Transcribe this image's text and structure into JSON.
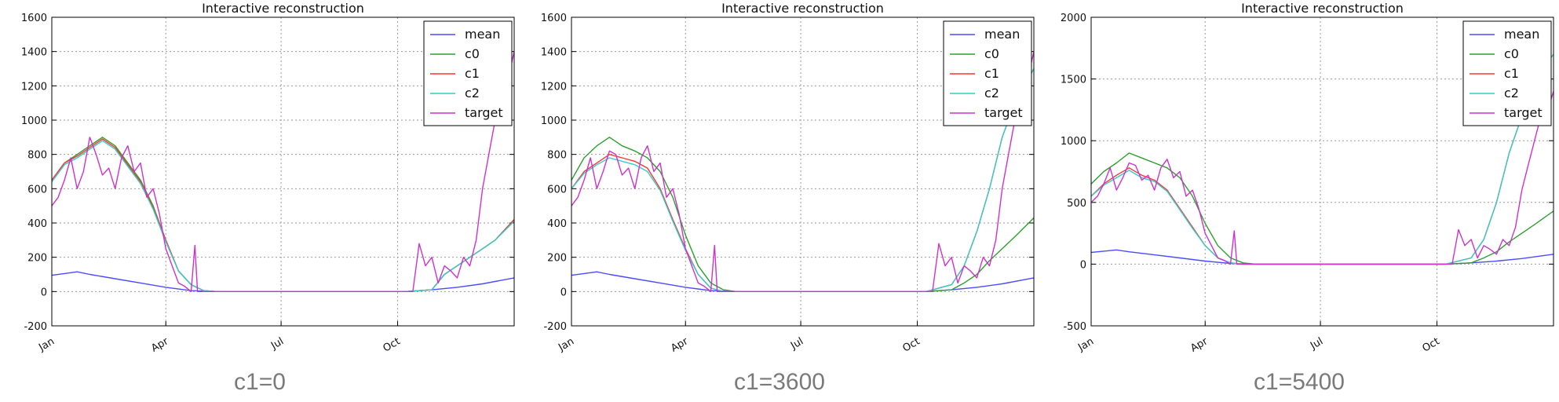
{
  "chart_data": [
    {
      "type": "line",
      "title": "Interactive reconstruction",
      "caption": "c1=0",
      "xlabel": "",
      "ylabel": "",
      "ylim": [
        -200,
        1600
      ],
      "yticks": [
        -200,
        0,
        200,
        400,
        600,
        800,
        1000,
        1200,
        1400,
        1600
      ],
      "xlim": [
        "Jan",
        "Dec end"
      ],
      "xticks": [
        {
          "label": "Jan",
          "day": 0
        },
        {
          "label": "Apr",
          "day": 90
        },
        {
          "label": "Jul",
          "day": 181
        },
        {
          "label": "Oct",
          "day": 273
        }
      ],
      "grid": true,
      "legend_position": "top-right",
      "series": [
        {
          "name": "mean",
          "color": "#4b4bff",
          "x": [
            0,
            10,
            20,
            30,
            50,
            70,
            90,
            110,
            130,
            200,
            280,
            300,
            320,
            340,
            365
          ],
          "y": [
            95,
            105,
            115,
            100,
            75,
            50,
            25,
            5,
            0,
            0,
            0,
            10,
            25,
            45,
            80
          ]
        },
        {
          "name": "c0",
          "color": "#2ca02c",
          "x": [
            0,
            10,
            20,
            30,
            40,
            50,
            60,
            70,
            80,
            90,
            100,
            110,
            120,
            130,
            280,
            300,
            310,
            320,
            330,
            340,
            350,
            365
          ],
          "y": [
            650,
            750,
            800,
            850,
            900,
            850,
            750,
            650,
            500,
            300,
            120,
            40,
            5,
            0,
            0,
            10,
            100,
            150,
            200,
            250,
            300,
            420
          ]
        },
        {
          "name": "c1",
          "color": "#ff3333",
          "x": [
            0,
            10,
            20,
            30,
            40,
            50,
            60,
            70,
            80,
            90,
            100,
            110,
            120,
            130,
            280,
            300,
            310,
            320,
            330,
            340,
            350,
            365
          ],
          "y": [
            650,
            750,
            790,
            840,
            890,
            840,
            740,
            640,
            490,
            300,
            120,
            40,
            5,
            0,
            0,
            10,
            100,
            150,
            200,
            250,
            300,
            420
          ]
        },
        {
          "name": "c2",
          "color": "#33cccc",
          "x": [
            0,
            10,
            20,
            30,
            40,
            50,
            60,
            70,
            80,
            90,
            100,
            110,
            120,
            130,
            280,
            300,
            310,
            320,
            330,
            340,
            350,
            365
          ],
          "y": [
            640,
            740,
            780,
            830,
            880,
            830,
            730,
            630,
            480,
            290,
            120,
            40,
            5,
            0,
            0,
            10,
            100,
            150,
            200,
            250,
            300,
            410
          ]
        },
        {
          "name": "target",
          "color": "#cc33cc",
          "x": [
            0,
            5,
            10,
            15,
            20,
            25,
            30,
            35,
            40,
            45,
            50,
            55,
            60,
            65,
            70,
            75,
            80,
            85,
            90,
            95,
            100,
            105,
            110,
            113,
            115,
            118,
            125,
            130,
            285,
            290,
            295,
            300,
            305,
            310,
            315,
            320,
            325,
            330,
            335,
            340,
            345,
            350,
            355,
            360,
            362,
            365
          ],
          "y": [
            500,
            550,
            650,
            780,
            600,
            700,
            900,
            800,
            680,
            720,
            600,
            780,
            850,
            700,
            750,
            550,
            600,
            450,
            250,
            150,
            50,
            30,
            0,
            270,
            0,
            0,
            0,
            0,
            0,
            280,
            150,
            200,
            50,
            150,
            120,
            80,
            200,
            150,
            300,
            600,
            800,
            1000,
            1200,
            1500,
            1300,
            1400
          ]
        }
      ]
    },
    {
      "type": "line",
      "title": "Interactive reconstruction",
      "caption": "c1=3600",
      "xlabel": "",
      "ylabel": "",
      "ylim": [
        -200,
        1600
      ],
      "yticks": [
        -200,
        0,
        200,
        400,
        600,
        800,
        1000,
        1200,
        1400,
        1600
      ],
      "xlim": [
        "Jan",
        "Dec end"
      ],
      "xticks": [
        {
          "label": "Jan",
          "day": 0
        },
        {
          "label": "Apr",
          "day": 90
        },
        {
          "label": "Jul",
          "day": 181
        },
        {
          "label": "Oct",
          "day": 273
        }
      ],
      "grid": true,
      "legend_position": "top-right",
      "series": [
        {
          "name": "mean",
          "color": "#4b4bff",
          "x": [
            0,
            10,
            20,
            30,
            50,
            70,
            90,
            110,
            130,
            200,
            280,
            300,
            320,
            340,
            365
          ],
          "y": [
            95,
            105,
            115,
            100,
            75,
            50,
            25,
            5,
            0,
            0,
            0,
            10,
            25,
            45,
            80
          ]
        },
        {
          "name": "c0",
          "color": "#2ca02c",
          "x": [
            0,
            10,
            20,
            30,
            40,
            50,
            60,
            70,
            80,
            90,
            100,
            110,
            120,
            130,
            280,
            300,
            310,
            320,
            330,
            340,
            350,
            365
          ],
          "y": [
            650,
            780,
            850,
            900,
            850,
            820,
            780,
            700,
            550,
            330,
            150,
            50,
            10,
            0,
            0,
            10,
            50,
            100,
            180,
            250,
            320,
            430
          ]
        },
        {
          "name": "c1",
          "color": "#ff3333",
          "x": [
            0,
            10,
            20,
            30,
            40,
            50,
            60,
            70,
            80,
            90,
            100,
            110,
            120,
            130,
            280,
            300,
            310,
            320,
            330,
            340,
            350,
            365
          ],
          "y": [
            600,
            700,
            750,
            800,
            780,
            760,
            720,
            600,
            420,
            250,
            100,
            20,
            0,
            0,
            0,
            40,
            150,
            350,
            600,
            900,
            1100,
            1300
          ]
        },
        {
          "name": "c2",
          "color": "#33cccc",
          "x": [
            0,
            10,
            20,
            30,
            40,
            50,
            60,
            70,
            80,
            90,
            100,
            110,
            120,
            130,
            280,
            300,
            310,
            320,
            330,
            340,
            350,
            365
          ],
          "y": [
            600,
            690,
            740,
            780,
            760,
            740,
            700,
            590,
            410,
            240,
            100,
            20,
            0,
            0,
            0,
            40,
            150,
            350,
            600,
            900,
            1100,
            1300
          ]
        },
        {
          "name": "target",
          "color": "#cc33cc",
          "x": [
            0,
            5,
            10,
            15,
            20,
            25,
            30,
            35,
            40,
            45,
            50,
            55,
            60,
            65,
            70,
            75,
            80,
            85,
            90,
            95,
            100,
            105,
            110,
            113,
            115,
            118,
            125,
            130,
            285,
            290,
            295,
            300,
            305,
            310,
            315,
            320,
            325,
            330,
            335,
            340,
            345,
            350,
            355,
            360,
            362,
            365
          ],
          "y": [
            500,
            550,
            650,
            780,
            600,
            700,
            820,
            800,
            680,
            720,
            600,
            780,
            850,
            700,
            750,
            550,
            600,
            450,
            250,
            150,
            50,
            30,
            0,
            270,
            0,
            0,
            0,
            0,
            0,
            280,
            150,
            200,
            50,
            150,
            120,
            80,
            200,
            150,
            300,
            600,
            800,
            1000,
            1200,
            1500,
            1300,
            1400
          ]
        }
      ]
    },
    {
      "type": "line",
      "title": "Interactive reconstruction",
      "caption": "c1=5400",
      "xlabel": "",
      "ylabel": "",
      "ylim": [
        -500,
        2000
      ],
      "yticks": [
        -500,
        0,
        500,
        1000,
        1500,
        2000
      ],
      "xlim": [
        "Jan",
        "Dec end"
      ],
      "xticks": [
        {
          "label": "Jan",
          "day": 0
        },
        {
          "label": "Apr",
          "day": 90
        },
        {
          "label": "Jul",
          "day": 181
        },
        {
          "label": "Oct",
          "day": 273
        }
      ],
      "grid": true,
      "legend_position": "top-right",
      "series": [
        {
          "name": "mean",
          "color": "#4b4bff",
          "x": [
            0,
            10,
            20,
            30,
            50,
            70,
            90,
            110,
            130,
            200,
            280,
            300,
            320,
            340,
            365
          ],
          "y": [
            95,
            105,
            115,
            100,
            75,
            50,
            25,
            5,
            0,
            0,
            0,
            10,
            25,
            45,
            80
          ]
        },
        {
          "name": "c0",
          "color": "#2ca02c",
          "x": [
            0,
            10,
            20,
            30,
            40,
            50,
            60,
            70,
            80,
            90,
            100,
            110,
            120,
            130,
            280,
            300,
            310,
            320,
            330,
            340,
            350,
            365
          ],
          "y": [
            650,
            750,
            820,
            900,
            860,
            820,
            780,
            700,
            550,
            330,
            150,
            50,
            10,
            0,
            0,
            10,
            50,
            100,
            180,
            250,
            320,
            430
          ]
        },
        {
          "name": "c1",
          "color": "#ff3333",
          "x": [
            0,
            10,
            20,
            30,
            40,
            50,
            60,
            70,
            80,
            90,
            100,
            110,
            120,
            130,
            280,
            300,
            310,
            320,
            330,
            340,
            350,
            365
          ],
          "y": [
            550,
            650,
            720,
            780,
            720,
            680,
            600,
            450,
            300,
            150,
            50,
            10,
            0,
            0,
            0,
            50,
            200,
            500,
            900,
            1200,
            1500,
            1700
          ]
        },
        {
          "name": "c2",
          "color": "#33cccc",
          "x": [
            0,
            10,
            20,
            30,
            40,
            50,
            60,
            70,
            80,
            90,
            100,
            110,
            120,
            130,
            280,
            300,
            310,
            320,
            330,
            340,
            350,
            365
          ],
          "y": [
            550,
            640,
            700,
            760,
            700,
            670,
            590,
            440,
            290,
            150,
            50,
            10,
            0,
            0,
            0,
            50,
            200,
            500,
            900,
            1200,
            1500,
            1700
          ]
        },
        {
          "name": "target",
          "color": "#cc33cc",
          "x": [
            0,
            5,
            10,
            15,
            20,
            25,
            30,
            35,
            40,
            45,
            50,
            55,
            60,
            65,
            70,
            75,
            80,
            85,
            90,
            95,
            100,
            105,
            110,
            113,
            115,
            118,
            125,
            130,
            285,
            290,
            295,
            300,
            305,
            310,
            315,
            320,
            325,
            330,
            335,
            340,
            345,
            350,
            355,
            360,
            362,
            365
          ],
          "y": [
            500,
            550,
            650,
            780,
            600,
            700,
            820,
            800,
            680,
            720,
            600,
            780,
            850,
            700,
            750,
            550,
            600,
            450,
            250,
            150,
            50,
            30,
            0,
            270,
            0,
            0,
            0,
            0,
            0,
            280,
            150,
            200,
            50,
            150,
            120,
            80,
            200,
            150,
            300,
            600,
            800,
            1000,
            1200,
            1500,
            1300,
            1400
          ]
        }
      ]
    }
  ]
}
